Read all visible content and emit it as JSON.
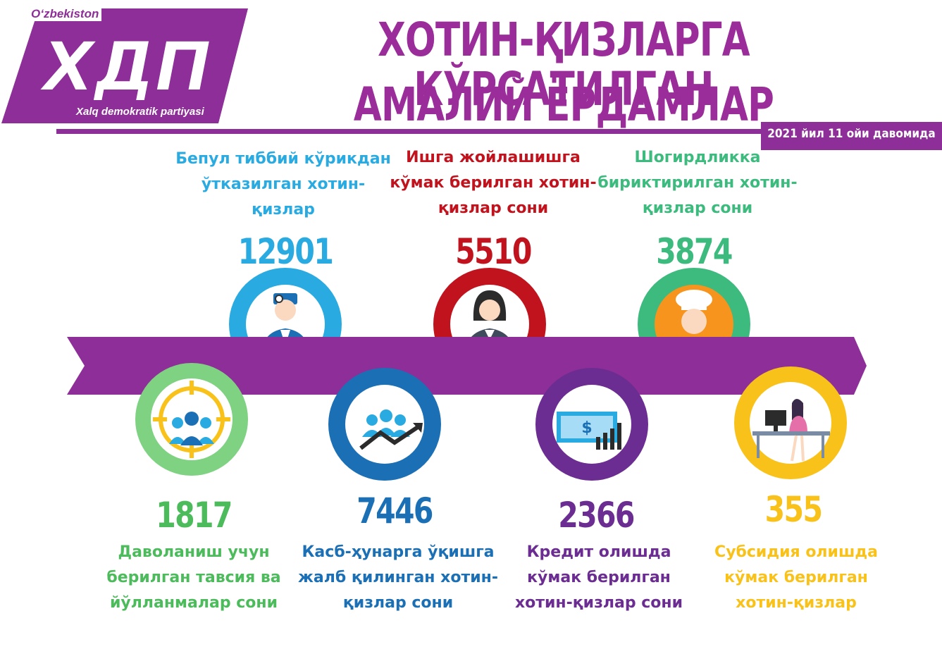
{
  "logo": {
    "country": "O‘zbekiston",
    "abbr": "ХДП",
    "party": "Xalq demokratik partiyasi"
  },
  "header": {
    "title_line1": "ХОТИН-ҚИЗЛАРГА КЎРСАТИЛГАН",
    "title_line2": "АМАЛИЙ ЁРДАМЛАР",
    "period": "2021 йил 11 ойи давомида"
  },
  "colors": {
    "brand": "#8e2e98",
    "cyan": "#29abe2",
    "red": "#c1131d",
    "teal": "#3dba7e",
    "green": "#4cbb5b",
    "blue": "#1b6fb5",
    "purple": "#6b2d91",
    "yellow": "#f9c21a"
  },
  "stats": {
    "medical": {
      "value": "12901",
      "label1": "Бепул тиббий кўрикдан",
      "label2": "ўтказилган хотин- қизлар",
      "icon": "doctor-icon"
    },
    "employment": {
      "value": "5510",
      "label1": "Ишга жойлашишга",
      "label2": "кўмак берилган хотин-",
      "label3": "қизлар сони",
      "icon": "businesswoman-icon"
    },
    "apprentice": {
      "value": "3874",
      "label1": "Шогирдликка",
      "label2": "бириктирилган хотин-",
      "label3": "қизлар сони",
      "icon": "chef-woman-icon"
    },
    "treatment": {
      "value": "1817",
      "label1": "Даволаниш учун",
      "label2": "берилган тавсия ва",
      "label3": "йўлланмалар сони",
      "icon": "target-people-icon"
    },
    "vocational": {
      "value": "7446",
      "label1": "Касб-ҳунарга ўқишга",
      "label2": "жалб қилинган хотин-",
      "label3": "қизлар сони",
      "icon": "growth-people-icon"
    },
    "credit": {
      "value": "2366",
      "label1": "Кредит олишда",
      "label2": "кўмак берилган",
      "label3": "хотин-қизлар сони",
      "icon": "money-chart-icon"
    },
    "subsidy": {
      "value": "355",
      "label1": "Субсидия олишда",
      "label2": "кўмак берилган",
      "label3": "хотин-қизлар",
      "icon": "woman-desk-icon"
    }
  }
}
